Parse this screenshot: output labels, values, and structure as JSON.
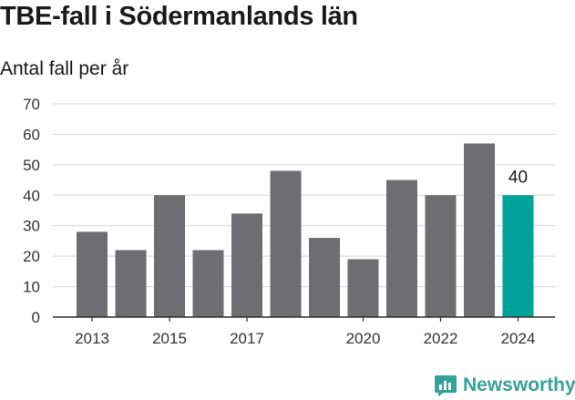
{
  "title": "TBE-fall i Södermanlands län",
  "subtitle": "Antal fall per år",
  "brand": {
    "name": "Newsworthy",
    "color": "#34a39a"
  },
  "colors": {
    "bar": "#6e6d71",
    "highlight": "#00a39a",
    "grid": "#d9d9d9",
    "axis": "#333333"
  },
  "chart_data": {
    "type": "bar",
    "categories": [
      "2013",
      "2014",
      "2015",
      "2016",
      "2017",
      "2018",
      "2019",
      "2020",
      "2021",
      "2022",
      "2023",
      "2024"
    ],
    "values": [
      28,
      22,
      40,
      22,
      34,
      48,
      26,
      19,
      45,
      40,
      57,
      40
    ],
    "x_tick_labels": [
      "2013",
      "2015",
      "2017",
      "2020",
      "2022",
      "2024"
    ],
    "y_ticks": [
      0,
      10,
      20,
      30,
      40,
      50,
      60,
      70
    ],
    "ylim": [
      0,
      70
    ],
    "highlight_category": "2024",
    "data_labels": [
      {
        "category": "2024",
        "text": "40"
      }
    ],
    "grid": true,
    "legend": "none"
  }
}
